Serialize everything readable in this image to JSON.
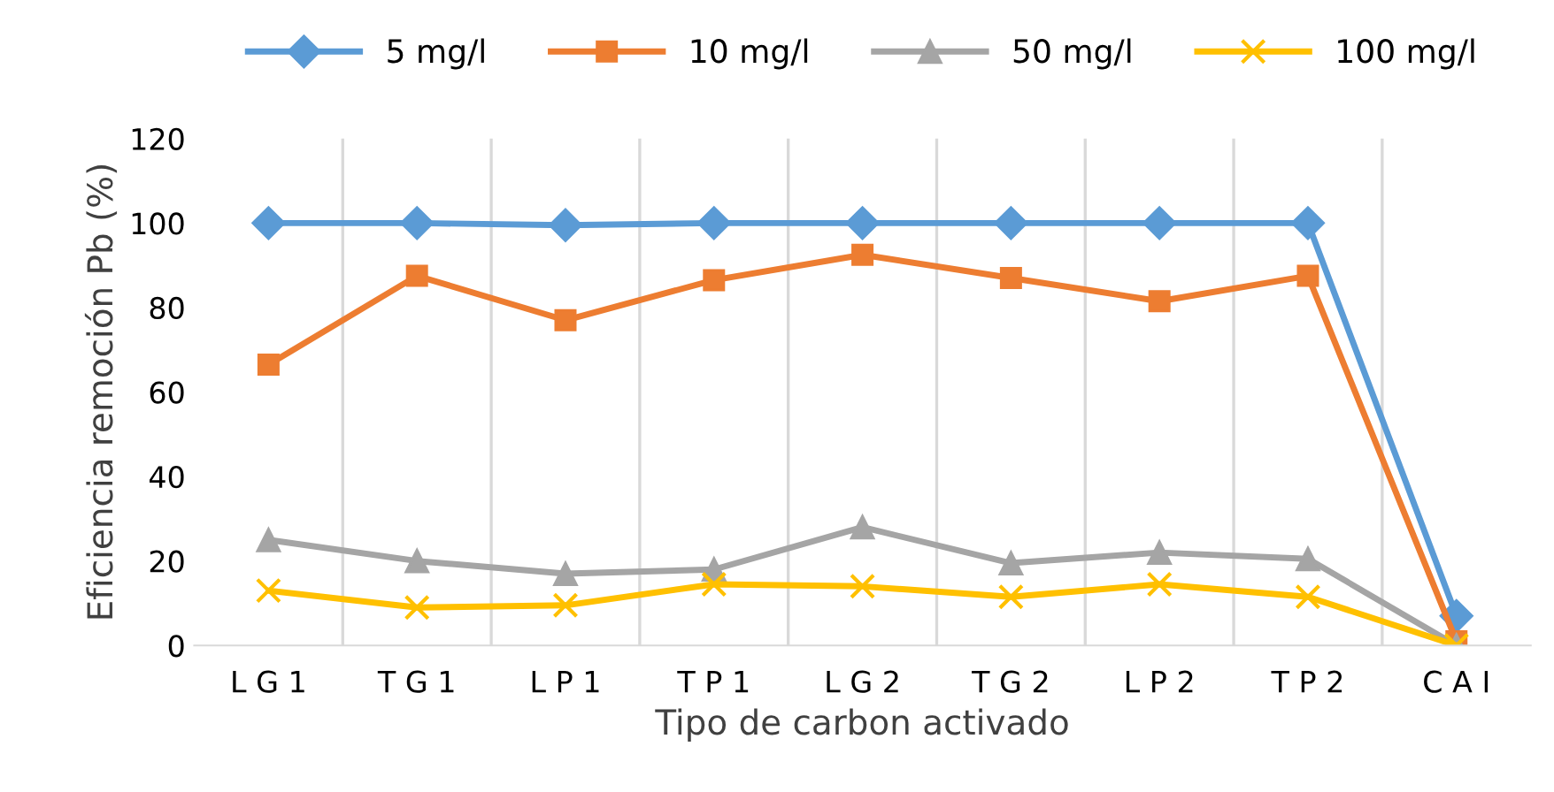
{
  "chart_data": {
    "type": "line",
    "xlabel": "Tipo de carbon activado",
    "ylabel": "Eficiencia remoción Pb (%)",
    "categories": [
      "L G 1",
      "T G 1",
      "L P 1",
      "T P 1",
      "L G 2",
      "T G 2",
      "L P 2",
      "T P 2",
      "C A I"
    ],
    "series": [
      {
        "name": "5 mg/l",
        "color": "#5b9bd5",
        "marker": "diamond",
        "values": [
          100,
          100,
          99.5,
          100,
          100,
          100,
          100,
          100,
          7
        ]
      },
      {
        "name": "10 mg/l",
        "color": "#ed7d31",
        "marker": "square",
        "values": [
          66.5,
          87.5,
          77,
          86.5,
          92.5,
          87,
          81.5,
          87.5,
          1
        ]
      },
      {
        "name": "50 mg/l",
        "color": "#a5a5a5",
        "marker": "triangle",
        "values": [
          25,
          20,
          17,
          18,
          28,
          19.5,
          22,
          20.5,
          0
        ]
      },
      {
        "name": "100 mg/l",
        "color": "#ffc000",
        "marker": "cross",
        "values": [
          13,
          9,
          9.5,
          14.5,
          14,
          11.5,
          14.5,
          11.5,
          0
        ]
      }
    ],
    "ylim": [
      0,
      120
    ],
    "yticks": [
      0,
      20,
      40,
      60,
      80,
      100,
      120
    ],
    "grid": "x",
    "legend": "top",
    "line_style": "solid"
  }
}
